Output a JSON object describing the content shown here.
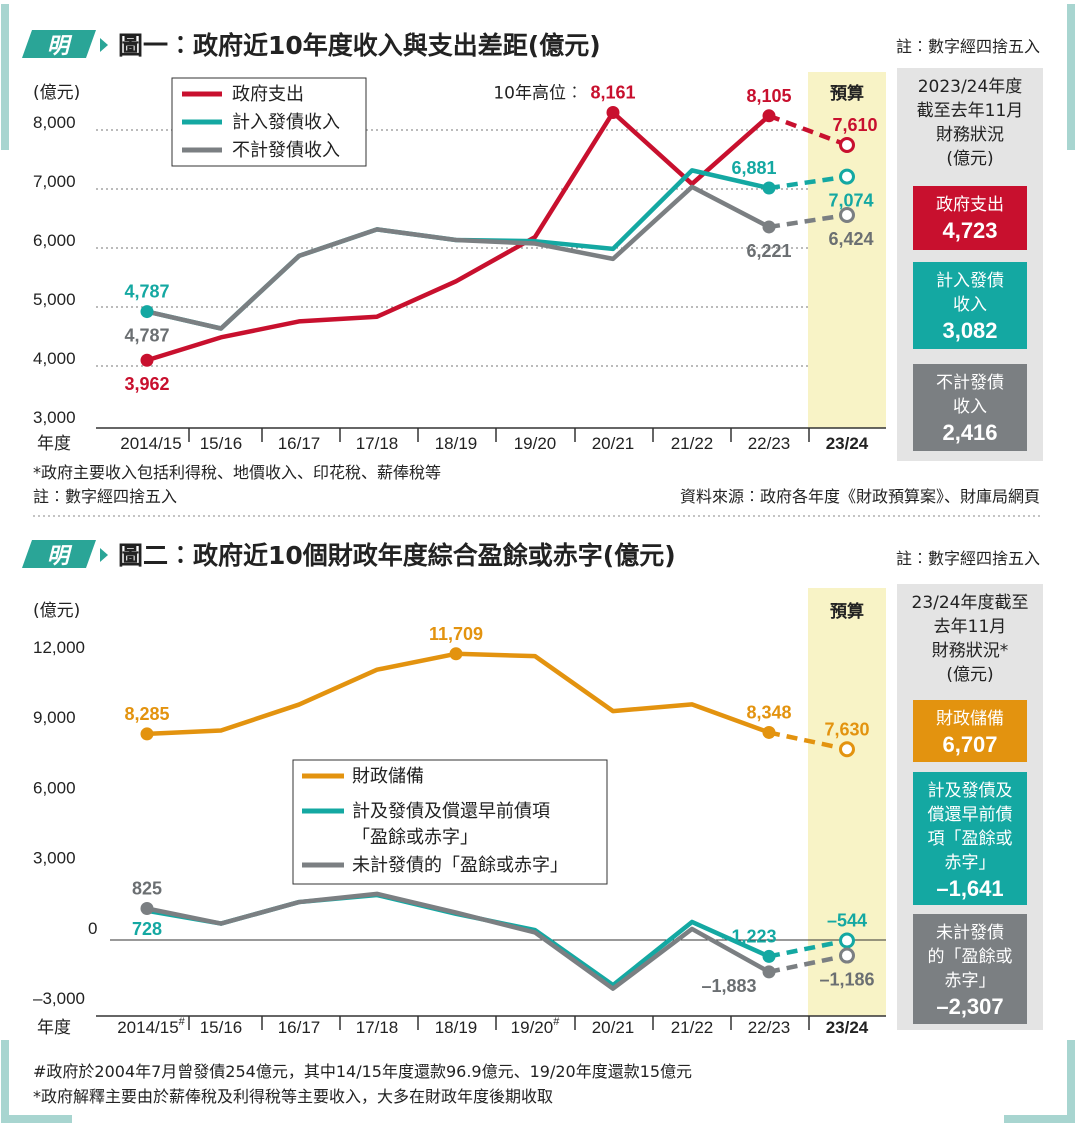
{
  "logo_char": "明",
  "colors": {
    "red": "#c8102e",
    "teal": "#14a8a2",
    "gray": "#7b7f82",
    "orange": "#e3930f",
    "budget_bg": "#f8f3c6",
    "frame": "#a8d5d0",
    "side_bg": "#e4e4e4"
  },
  "chart1": {
    "title": "圖一︰政府近10年度收入與支出差距(億元)",
    "note": "註︰數字經四捨五入",
    "unit": "(億元)",
    "budget_label": "預算",
    "xaxis_prefix": "年度",
    "peak_label": "10年高位︰",
    "footnotes": [
      "*政府主要收入包括利得稅、地價收入、印花稅、薪俸稅等",
      "註︰數字經四捨五入"
    ],
    "source": "資料來源︰政府各年度《財政預算案》、財庫局網頁",
    "side": {
      "header": [
        "2023/24年度",
        "截至去年11月",
        "財務狀況",
        "(億元)"
      ],
      "boxes": [
        {
          "lines": [
            "政府支出"
          ],
          "value": "4,723",
          "color": "#c8102e"
        },
        {
          "lines": [
            "計入發債",
            "收入"
          ],
          "value": "3,082",
          "color": "#14a8a2"
        },
        {
          "lines": [
            "不計發債",
            "收入"
          ],
          "value": "2,416",
          "color": "#7b7f82"
        }
      ]
    }
  },
  "chart2": {
    "title": "圖二︰政府近10個財政年度綜合盈餘或赤字(億元)",
    "note": "註︰數字經四捨五入",
    "unit": "(億元)",
    "budget_label": "預算",
    "xaxis_prefix": "年度",
    "footnotes": [
      "#政府於2004年7月曾發債254億元，其中14/15年度還款96.9億元、19/20年度還款15億元",
      "*政府解釋主要由於薪俸稅及利得稅等主要收入，大多在財政年度後期收取"
    ],
    "side": {
      "header": [
        "23/24年度截至",
        "去年11月",
        "財務狀況*",
        "(億元)"
      ],
      "boxes": [
        {
          "lines": [
            "財政儲備"
          ],
          "value": "6,707",
          "color": "#e3930f"
        },
        {
          "lines": [
            "計及發債及",
            "償還早前債",
            "項「盈餘或",
            "赤字」"
          ],
          "value": "–1,641",
          "color": "#14a8a2"
        },
        {
          "lines": [
            "未計發債",
            "的「盈餘或",
            "赤字」"
          ],
          "value": "–2,307",
          "color": "#7b7f82"
        }
      ]
    }
  },
  "chart_data": [
    {
      "type": "line",
      "title": "圖一︰政府近10年度收入與支出差距(億元)",
      "ylabel": "億元",
      "xlabel": "年度",
      "categories": [
        "2014/15",
        "15/16",
        "16/17",
        "17/18",
        "18/19",
        "19/20",
        "20/21",
        "21/22",
        "22/23",
        "23/24"
      ],
      "ylim": [
        3000,
        8000
      ],
      "yticks": [
        {
          "value": 3000,
          "label": "3,000"
        },
        {
          "value": 4000,
          "label": "4,000"
        },
        {
          "value": 5000,
          "label": "5,000"
        },
        {
          "value": 6000,
          "label": "6,000"
        },
        {
          "value": 7000,
          "label": "7,000"
        },
        {
          "value": 8000,
          "label": "8,000"
        }
      ],
      "grid": true,
      "legend_position": "top-left",
      "budget_category": "23/24",
      "series": [
        {
          "name": "政府支出",
          "color": "#c8102e",
          "values": [
            3962,
            4350,
            4620,
            4700,
            5300,
            6050,
            8161,
            6950,
            8105,
            7610
          ]
        },
        {
          "name": "計入發債收入",
          "color": "#14a8a2",
          "values": [
            4787,
            4500,
            5730,
            6180,
            6000,
            5980,
            5850,
            7180,
            6881,
            7074
          ]
        },
        {
          "name": "不計發債收入",
          "color": "#7b7f82",
          "values": [
            4787,
            4500,
            5730,
            6180,
            6000,
            5940,
            5680,
            6900,
            6221,
            6424
          ]
        }
      ],
      "annotations": [
        {
          "series": 0,
          "index": 0,
          "text": "3,962",
          "place": "below"
        },
        {
          "series": 1,
          "index": 0,
          "text": "4,787",
          "place": "above"
        },
        {
          "series": 2,
          "index": 0,
          "text": "4,787",
          "place": "below"
        },
        {
          "series": 0,
          "index": 6,
          "text": "8,161",
          "place": "above",
          "prefix": "10年高位︰"
        },
        {
          "series": 0,
          "index": 8,
          "text": "8,105",
          "place": "above"
        },
        {
          "series": 0,
          "index": 9,
          "text": "7,610",
          "place": "above"
        },
        {
          "series": 1,
          "index": 8,
          "text": "6,881",
          "place": "above"
        },
        {
          "series": 1,
          "index": 9,
          "text": "7,074",
          "place": "below"
        },
        {
          "series": 2,
          "index": 8,
          "text": "6,221",
          "place": "below"
        },
        {
          "series": 2,
          "index": 9,
          "text": "6,424",
          "place": "below"
        }
      ]
    },
    {
      "type": "line",
      "title": "圖二︰政府近10個財政年度綜合盈餘或赤字(億元)",
      "ylabel": "億元",
      "xlabel": "年度",
      "categories": [
        "2014/15#",
        "15/16",
        "16/17",
        "17/18",
        "18/19",
        "19/20#",
        "20/21",
        "21/22",
        "22/23",
        "23/24"
      ],
      "ylim": [
        -3000,
        12000
      ],
      "yticks": [
        {
          "value": -3000,
          "label": "–3,000"
        },
        {
          "value": 0,
          "label": "0"
        },
        {
          "value": 3000,
          "label": "3,000"
        },
        {
          "value": 6000,
          "label": "6,000"
        },
        {
          "value": 9000,
          "label": "9,000"
        },
        {
          "value": 12000,
          "label": "12,000"
        }
      ],
      "grid": false,
      "legend_position": "center",
      "budget_category": "23/24",
      "series": [
        {
          "name": "財政儲備",
          "color": "#e3930f",
          "values": [
            8285,
            8430,
            9540,
            11030,
            11709,
            11610,
            9260,
            9550,
            8348,
            7630
          ]
        },
        {
          "name": "計及發債及償還早前債項「盈餘或赤字」",
          "color": "#14a8a2",
          "values": [
            728,
            180,
            1100,
            1400,
            600,
            -100,
            -2450,
            250,
            -1223,
            -544
          ]
        },
        {
          "name": "未計發債的「盈餘或赤字」",
          "color": "#7b7f82",
          "values": [
            825,
            180,
            1100,
            1450,
            650,
            -200,
            -2600,
            -50,
            -1883,
            -1186
          ]
        }
      ],
      "annotations": [
        {
          "series": 0,
          "index": 0,
          "text": "8,285",
          "place": "above"
        },
        {
          "series": 0,
          "index": 4,
          "text": "11,709",
          "place": "above"
        },
        {
          "series": 0,
          "index": 8,
          "text": "8,348",
          "place": "above"
        },
        {
          "series": 0,
          "index": 9,
          "text": "7,630",
          "place": "above"
        },
        {
          "series": 2,
          "index": 0,
          "text": "825",
          "place": "above"
        },
        {
          "series": 1,
          "index": 0,
          "text": "728",
          "place": "below"
        },
        {
          "series": 1,
          "index": 8,
          "text": "–1,223",
          "place": "above-left"
        },
        {
          "series": 1,
          "index": 9,
          "text": "–544",
          "place": "above"
        },
        {
          "series": 2,
          "index": 8,
          "text": "–1,883",
          "place": "below-left"
        },
        {
          "series": 2,
          "index": 9,
          "text": "–1,186",
          "place": "below"
        }
      ]
    }
  ]
}
